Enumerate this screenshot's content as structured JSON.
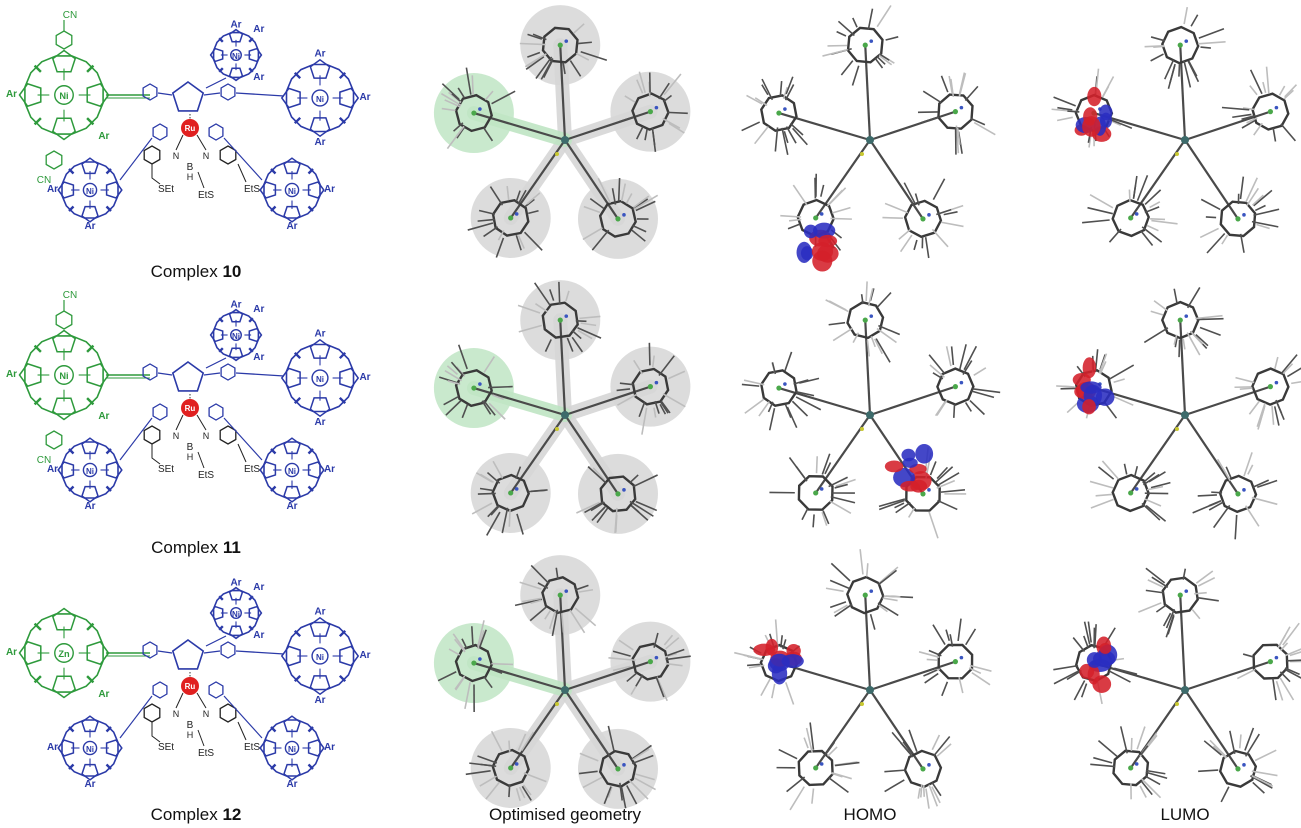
{
  "rows": [
    {
      "name": "Complex ",
      "num": "10",
      "atoms": {
        "ru": "Ru",
        "cn_top": "CN",
        "cn_bot": "CN",
        "ni": "Ni",
        "ar": "Ar",
        "set": "SEt",
        "ets": "EtS",
        "b": "B",
        "h": "H",
        "n": "N"
      }
    },
    {
      "name": "Complex ",
      "num": "11",
      "atoms": {
        "ru": "Ru",
        "cn_top": "CN",
        "cn_bot": "CN",
        "ni": "Ni",
        "ar": "Ar",
        "set": "SEt",
        "ets": "EtS",
        "b": "B",
        "h": "H",
        "n": "N"
      }
    },
    {
      "name": "Complex ",
      "num": "12",
      "atoms": {
        "ru": "Ru",
        "zn": "Zn",
        "ni": "Ni",
        "ar": "Ar",
        "set": "SEt",
        "ets": "EtS",
        "b": "B",
        "h": "H",
        "n": "N"
      }
    }
  ],
  "columns": {
    "geometry": "Optimised geometry",
    "homo": "HOMO",
    "lumo": "LUMO"
  },
  "colors": {
    "donor_green": "#2e9a3c",
    "acceptor_blue": "#2b3aa8",
    "ruthenium_red": "#e02020",
    "orbital_red": "#d4202a",
    "orbital_blue": "#2a2ec0",
    "highlight_green": "#bfe5c4",
    "shadow_grey": "#d6d6d6"
  }
}
